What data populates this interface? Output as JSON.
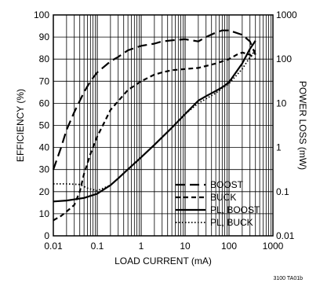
{
  "chart_data": {
    "type": "line",
    "xlabel": "LOAD CURRENT (mA)",
    "ylabel_left": "EFFICIENCY (%)",
    "ylabel_right": "POWER LOSS (mW)",
    "x_scale": "log",
    "xlim": [
      0.01,
      1000
    ],
    "ylim_left": [
      0,
      100
    ],
    "ylim_right": [
      0.01,
      1000
    ],
    "y_right_scale": "log",
    "x_ticks": [
      "0.01",
      "0.1",
      "1",
      "10",
      "100",
      "1000"
    ],
    "y_left_ticks": [
      "0",
      "10",
      "20",
      "30",
      "40",
      "50",
      "60",
      "70",
      "80",
      "90",
      "100"
    ],
    "y_right_ticks": [
      "0.01",
      "0.1",
      "1",
      "10",
      "100",
      "1000"
    ],
    "grid": true,
    "legend_position": "bottom-right",
    "figure_code": "3100 TA01b",
    "series": [
      {
        "name": "BOOST",
        "axis": "left",
        "dash": "long-dash",
        "points": [
          [
            0.01,
            30
          ],
          [
            0.015,
            40
          ],
          [
            0.02,
            48
          ],
          [
            0.03,
            56
          ],
          [
            0.05,
            65
          ],
          [
            0.07,
            70
          ],
          [
            0.1,
            74
          ],
          [
            0.2,
            79
          ],
          [
            0.3,
            81
          ],
          [
            0.5,
            84
          ],
          [
            1,
            86
          ],
          [
            2,
            87
          ],
          [
            3,
            88
          ],
          [
            5,
            88.5
          ],
          [
            10,
            89
          ],
          [
            20,
            88
          ],
          [
            30,
            90
          ],
          [
            50,
            92
          ],
          [
            70,
            93
          ],
          [
            100,
            93
          ],
          [
            200,
            91
          ],
          [
            300,
            88
          ],
          [
            400,
            82
          ]
        ]
      },
      {
        "name": "BUCK",
        "axis": "left",
        "dash": "short-dash",
        "points": [
          [
            0.01,
            7
          ],
          [
            0.015,
            9
          ],
          [
            0.02,
            11
          ],
          [
            0.03,
            14
          ],
          [
            0.04,
            20
          ],
          [
            0.05,
            28
          ],
          [
            0.07,
            37
          ],
          [
            0.1,
            45
          ],
          [
            0.15,
            52
          ],
          [
            0.2,
            57
          ],
          [
            0.3,
            61
          ],
          [
            0.5,
            66
          ],
          [
            1,
            70
          ],
          [
            2,
            73
          ],
          [
            3,
            74
          ],
          [
            5,
            75
          ],
          [
            10,
            75.5
          ],
          [
            20,
            76
          ],
          [
            50,
            78
          ],
          [
            100,
            80
          ],
          [
            150,
            82
          ],
          [
            200,
            83
          ],
          [
            300,
            82
          ],
          [
            400,
            80
          ]
        ]
      },
      {
        "name": "PL, BOOST",
        "axis": "right",
        "dash": "solid",
        "points": [
          [
            0.01,
            0.06
          ],
          [
            0.02,
            0.063
          ],
          [
            0.05,
            0.072
          ],
          [
            0.1,
            0.09
          ],
          [
            0.2,
            0.14
          ],
          [
            0.3,
            0.2
          ],
          [
            0.5,
            0.32
          ],
          [
            1,
            0.6
          ],
          [
            2,
            1.15
          ],
          [
            5,
            2.8
          ],
          [
            10,
            5.7
          ],
          [
            20,
            11.5
          ],
          [
            30,
            14.5
          ],
          [
            50,
            19
          ],
          [
            70,
            23
          ],
          [
            100,
            30
          ],
          [
            200,
            80
          ],
          [
            300,
            170
          ],
          [
            400,
            260
          ]
        ]
      },
      {
        "name": "PL, BUCK",
        "axis": "right",
        "dash": "dotted",
        "points": [
          [
            0.01,
            0.15
          ],
          [
            0.02,
            0.15
          ],
          [
            0.04,
            0.145
          ],
          [
            0.06,
            0.12
          ],
          [
            0.1,
            0.105
          ],
          [
            0.2,
            0.14
          ],
          [
            0.3,
            0.2
          ],
          [
            0.5,
            0.32
          ],
          [
            1,
            0.6
          ],
          [
            2,
            1.15
          ],
          [
            5,
            2.8
          ],
          [
            10,
            5.7
          ],
          [
            20,
            10
          ],
          [
            50,
            17
          ],
          [
            100,
            28
          ],
          [
            200,
            60
          ],
          [
            300,
            110
          ],
          [
            400,
            160
          ]
        ]
      }
    ]
  }
}
